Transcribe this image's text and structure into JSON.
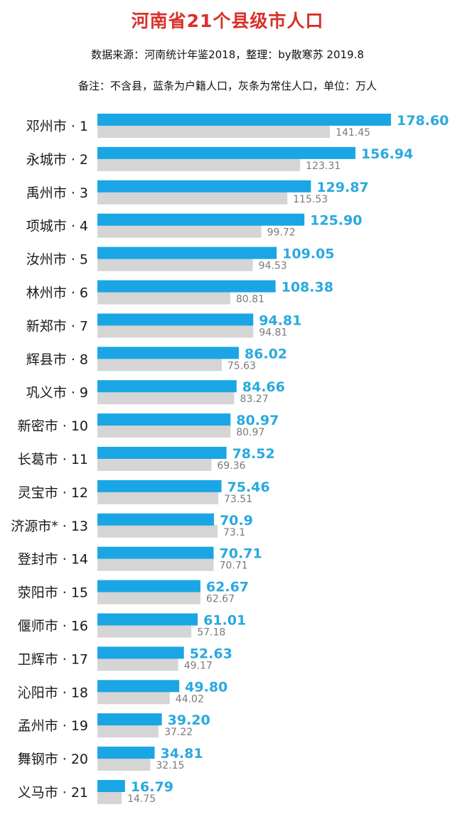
{
  "title": "河南省21个县级市人口",
  "source": "数据来源：河南统计年鉴2018，整理：by散寒苏  2019.8",
  "note": "备注：不含县，蓝条为户籍人口，灰条为常住人口，单位：万人",
  "colors": {
    "registered": "#1aa6e4",
    "resident": "#d5d5d5",
    "title": "#d9302a"
  },
  "chart_data": {
    "type": "bar",
    "orientation": "horizontal",
    "categories": [
      "邓州市 · 1",
      "永城市 · 2",
      "禹州市 · 3",
      "项城市 · 4",
      "汝州市 · 5",
      "林州市 · 6",
      "新郑市 · 7",
      "辉县市 · 8",
      "巩义市 · 9",
      "新密市 · 10",
      "长葛市 · 11",
      "灵宝市 · 12",
      "济源市* · 13",
      "登封市 · 14",
      "荥阳市 · 15",
      "偃师市 · 16",
      "卫辉市 · 17",
      "沁阳市 · 18",
      "孟州市 · 19",
      "舞钢市 · 20",
      "义马市 · 21"
    ],
    "series": [
      {
        "values": [
          178.6,
          156.94,
          129.87,
          125.9,
          109.05,
          108.38,
          94.81,
          86.02,
          84.66,
          80.97,
          78.52,
          75.46,
          70.9,
          70.71,
          62.67,
          61.01,
          52.63,
          49.8,
          39.2,
          34.81,
          16.79
        ],
        "labels": [
          "178.60",
          "156.94",
          "129.87",
          "125.90",
          "109.05",
          "108.38",
          "94.81",
          "86.02",
          "84.66",
          "80.97",
          "78.52",
          "75.46",
          "70.9",
          "70.71",
          "62.67",
          "61.01",
          "52.63",
          "49.80",
          "39.20",
          "34.81",
          "16.79"
        ]
      },
      {
        "values": [
          141.45,
          123.31,
          115.53,
          99.72,
          94.53,
          80.81,
          94.81,
          75.63,
          83.27,
          80.97,
          69.36,
          73.51,
          73.1,
          70.71,
          62.67,
          57.18,
          49.17,
          44.02,
          37.22,
          32.15,
          14.75
        ],
        "labels": [
          "141.45",
          "123.31",
          "115.53",
          "99.72",
          "94.53",
          "80.81",
          "94.81",
          "75.63",
          "83.27",
          "80.97",
          "69.36",
          "73.51",
          "73.1",
          "70.71",
          "62.67",
          "57.18",
          "49.17",
          "44.02",
          "37.22",
          "32.15",
          "14.75"
        ]
      }
    ],
    "xlim": [
      0,
      178.6
    ]
  }
}
